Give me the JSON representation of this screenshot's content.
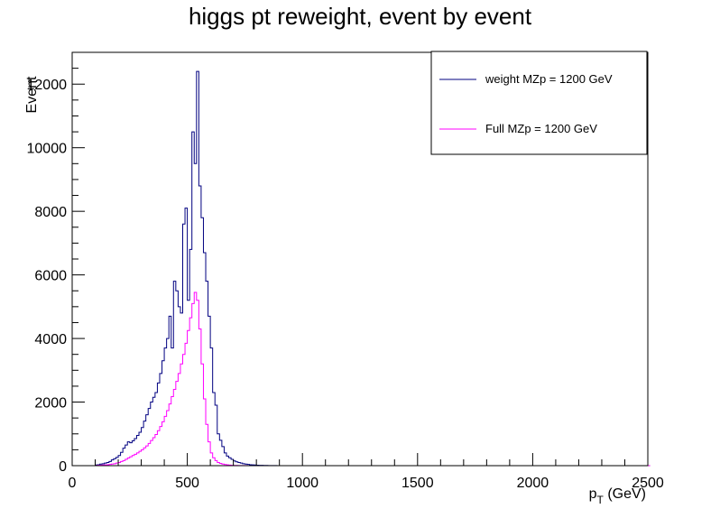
{
  "chart_data": {
    "type": "histogram",
    "title": "higgs pt reweight, event by event",
    "xlabel_main": "p",
    "xlabel_sub": "T",
    "xlabel_tail": " (GeV)",
    "ylabel": "Event",
    "xlim": [
      0,
      2500
    ],
    "ylim": [
      0,
      13000
    ],
    "x_ticks": [
      0,
      500,
      1000,
      1500,
      2000,
      2500
    ],
    "y_ticks": [
      0,
      2000,
      4000,
      6000,
      8000,
      10000,
      12000
    ],
    "bin_width": 10,
    "grid": false,
    "legend_position": "top-right",
    "series": [
      {
        "name": "weight MZp = 1200 GeV",
        "color": "#000080",
        "x": [
          0,
          100,
          110,
          120,
          130,
          140,
          150,
          160,
          170,
          180,
          190,
          200,
          210,
          220,
          230,
          240,
          250,
          260,
          270,
          280,
          290,
          300,
          310,
          320,
          330,
          340,
          350,
          360,
          370,
          380,
          390,
          400,
          410,
          420,
          430,
          440,
          450,
          460,
          470,
          480,
          490,
          500,
          510,
          520,
          530,
          540,
          550,
          560,
          570,
          580,
          590,
          600,
          610,
          620,
          630,
          640,
          650,
          660,
          670,
          680,
          690,
          700,
          710,
          720,
          730,
          740,
          750,
          760,
          770,
          780,
          790,
          800,
          810,
          820,
          830,
          840,
          850,
          860,
          870,
          880,
          890,
          900,
          1000,
          2500
        ],
        "values": [
          0,
          20,
          30,
          50,
          60,
          80,
          100,
          130,
          180,
          220,
          260,
          320,
          420,
          550,
          650,
          750,
          720,
          780,
          850,
          950,
          1050,
          1200,
          1400,
          1600,
          1800,
          2000,
          2150,
          2300,
          2600,
          2900,
          3300,
          3700,
          4000,
          4700,
          3700,
          5800,
          5500,
          5000,
          4800,
          7600,
          8100,
          5200,
          6800,
          10500,
          9500,
          12400,
          8800,
          7800,
          6700,
          5800,
          4700,
          3700,
          2300,
          1900,
          1000,
          800,
          600,
          400,
          300,
          250,
          200,
          150,
          120,
          100,
          80,
          60,
          50,
          40,
          30,
          25,
          20,
          15,
          12,
          10,
          8,
          6,
          5,
          4,
          3,
          2,
          1,
          0,
          0,
          0
        ]
      },
      {
        "name": "Full MZp = 1200 GeV",
        "color": "#ff00ff",
        "x": [
          0,
          100,
          110,
          120,
          130,
          140,
          150,
          160,
          170,
          180,
          190,
          200,
          210,
          220,
          230,
          240,
          250,
          260,
          270,
          280,
          290,
          300,
          310,
          320,
          330,
          340,
          350,
          360,
          370,
          380,
          390,
          400,
          410,
          420,
          430,
          440,
          450,
          460,
          470,
          480,
          490,
          500,
          510,
          520,
          530,
          540,
          550,
          560,
          570,
          580,
          590,
          600,
          610,
          620,
          630,
          640,
          650,
          660,
          670,
          680,
          690,
          700,
          710,
          720,
          730,
          740,
          750,
          760,
          770,
          780,
          790,
          800,
          810,
          820,
          830,
          840,
          850,
          860,
          870,
          880,
          890,
          900,
          1000,
          2500
        ],
        "values": [
          0,
          5,
          10,
          15,
          20,
          25,
          30,
          40,
          50,
          60,
          80,
          100,
          130,
          160,
          200,
          240,
          280,
          320,
          360,
          400,
          450,
          500,
          560,
          620,
          700,
          790,
          880,
          980,
          1100,
          1230,
          1380,
          1550,
          1730,
          1940,
          2170,
          2400,
          2650,
          2900,
          3200,
          3500,
          3850,
          4250,
          4650,
          5100,
          5450,
          5200,
          4300,
          3200,
          2100,
          1300,
          750,
          400,
          250,
          160,
          100,
          70,
          50,
          35,
          25,
          18,
          12,
          8,
          6,
          4,
          3,
          2,
          2,
          1,
          1,
          1,
          0,
          0,
          0,
          0,
          0,
          0,
          0,
          0,
          0,
          0,
          0,
          0,
          0,
          0
        ]
      }
    ]
  }
}
